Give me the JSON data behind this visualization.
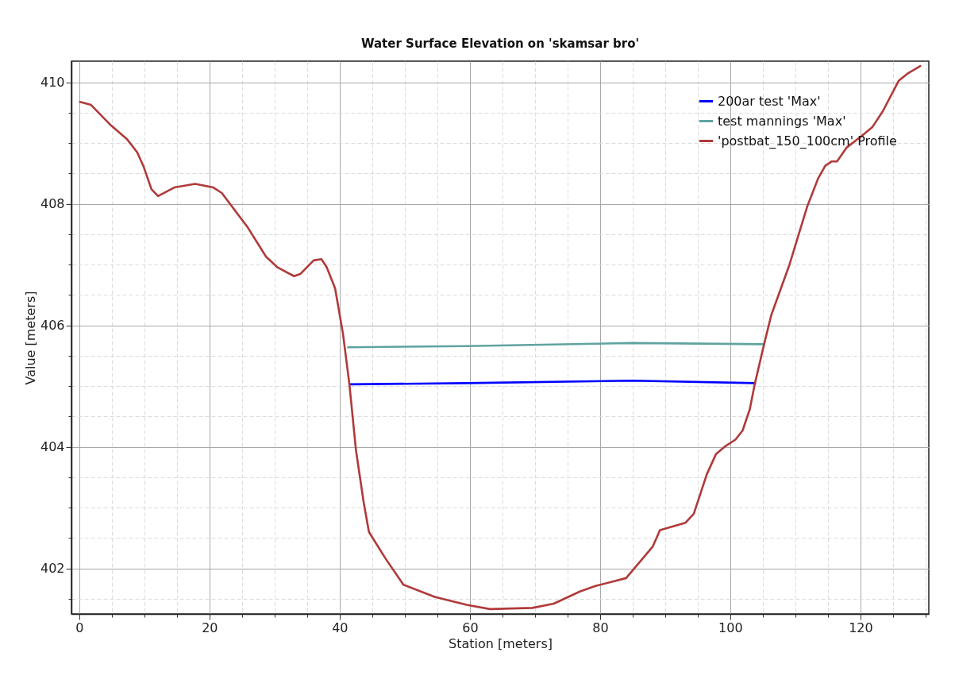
{
  "chart_data": {
    "type": "line",
    "title": "Water Surface Elevation on 'skamsar bro'",
    "xlabel": "Station [meters]",
    "ylabel": "Value [meters]",
    "xlim": [
      -1.2,
      130.5
    ],
    "ylim": [
      401.25,
      410.35
    ],
    "xticks": [
      0,
      {
        "value": 5,
        "label": null
      },
      {
        "value": 10,
        "label": null
      },
      {
        "value": 15,
        "label": null
      },
      20,
      {
        "value": 25,
        "label": null
      },
      {
        "value": 30,
        "label": null
      },
      {
        "value": 35,
        "label": null
      },
      40,
      {
        "value": 45,
        "label": null
      },
      {
        "value": 50,
        "label": null
      },
      {
        "value": 55,
        "label": null
      },
      60,
      {
        "value": 65,
        "label": null
      },
      {
        "value": 70,
        "label": null
      },
      {
        "value": 75,
        "label": null
      },
      80,
      {
        "value": 85,
        "label": null
      },
      {
        "value": 90,
        "label": null
      },
      {
        "value": 95,
        "label": null
      },
      100,
      {
        "value": 105,
        "label": null
      },
      {
        "value": 110,
        "label": null
      },
      {
        "value": 115,
        "label": null
      },
      120,
      {
        "value": 125,
        "label": null
      },
      {
        "value": 130,
        "label": null
      }
    ],
    "yticks": [
      {
        "value": 401.5,
        "label": null
      },
      402,
      {
        "value": 402.5,
        "label": null
      },
      {
        "value": 403,
        "label": null
      },
      {
        "value": 403.5,
        "label": null
      },
      404,
      {
        "value": 404.5,
        "label": null
      },
      {
        "value": 405,
        "label": null
      },
      {
        "value": 405.5,
        "label": null
      },
      406,
      {
        "value": 406.5,
        "label": null
      },
      {
        "value": 407,
        "label": null
      },
      {
        "value": 407.5,
        "label": null
      },
      408,
      {
        "value": 408.5,
        "label": null
      },
      {
        "value": 409,
        "label": null
      },
      {
        "value": 409.5,
        "label": null
      },
      410
    ],
    "grid": true,
    "legend": "top right",
    "line_style": "solid",
    "series": [
      {
        "name": "200ar test 'Max'",
        "color": "#0000ff",
        "x": [
          41.5,
          59.5,
          85,
          103.8
        ],
        "values": [
          405.03,
          405.05,
          405.09,
          405.05
        ]
      },
      {
        "name": "test mannings 'Max'",
        "color": "#5fa3a0",
        "x": [
          41.3,
          59.5,
          85,
          105.2
        ],
        "values": [
          405.64,
          405.66,
          405.71,
          405.69
        ]
      },
      {
        "name": "'postbat_150_100cm' Profile",
        "color": "#b03a3a",
        "x": [
          0.1,
          1.8,
          4.9,
          7.3,
          8.9,
          9.9,
          11.1,
          12.1,
          14.6,
          17.8,
          20.6,
          21.9,
          25.9,
          28.7,
          30.4,
          33.0,
          34.0,
          36.0,
          37.2,
          38.0,
          39.3,
          40.5,
          41.5,
          42.5,
          43.7,
          44.5,
          47.0,
          49.8,
          54.6,
          59.5,
          63.1,
          69.6,
          72.9,
          76.9,
          79.3,
          84.0,
          88.1,
          89.2,
          93.1,
          94.4,
          96.4,
          97.8,
          99.1,
          100.8,
          101.9,
          103.0,
          103.8,
          105.2,
          106.3,
          109.1,
          111.8,
          113.5,
          114.6,
          115.6,
          116.4,
          117.9,
          120.1,
          121.8,
          123.4,
          125.9,
          127.3,
          129.2
        ],
        "values": [
          409.68,
          409.63,
          409.29,
          409.07,
          408.85,
          408.61,
          408.24,
          408.13,
          408.27,
          408.33,
          408.27,
          408.18,
          407.61,
          407.13,
          406.96,
          406.81,
          406.85,
          407.07,
          407.09,
          406.96,
          406.61,
          405.87,
          405.03,
          403.95,
          403.08,
          402.6,
          402.17,
          401.73,
          401.53,
          401.4,
          401.33,
          401.35,
          401.42,
          401.62,
          401.71,
          401.84,
          402.36,
          402.63,
          402.75,
          402.9,
          403.55,
          403.88,
          404.0,
          404.12,
          404.27,
          404.62,
          405.05,
          405.69,
          406.17,
          407.0,
          407.95,
          408.42,
          408.63,
          408.7,
          408.7,
          408.93,
          409.11,
          409.26,
          409.52,
          410.03,
          410.15,
          410.27
        ]
      }
    ]
  }
}
